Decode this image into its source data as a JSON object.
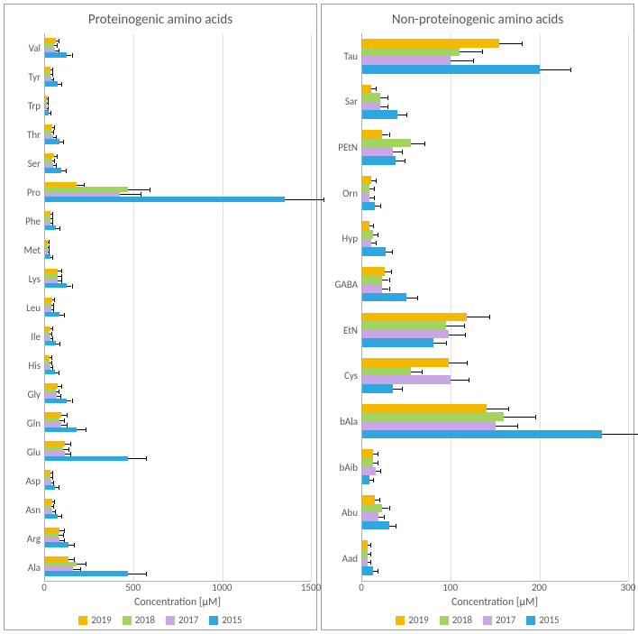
{
  "colors": {
    "2019": "#f5b800",
    "2018": "#a2d45e",
    "2017": "#c9a6e4",
    "2015": "#2ea7e0",
    "grid": "#e1e1e1",
    "axis": "#b0b0b0",
    "text": "#595959",
    "err": "#000000"
  },
  "series_order": [
    "2019",
    "2018",
    "2017",
    "2015"
  ],
  "left_panel": {
    "title": "Proteinogenic amino acids",
    "x_title": "Concentration [µM]",
    "xmax": 1500,
    "x_ticks": [
      0,
      500,
      1000,
      1500
    ],
    "bar_rel_h": 0.17,
    "categories": [
      "Val",
      "Tyr",
      "Trp",
      "Thr",
      "Ser",
      "Pro",
      "Phe",
      "Met",
      "Lys",
      "Leu",
      "Ile",
      "His",
      "Gly",
      "Gln",
      "Glu",
      "Asp",
      "Asn",
      "Arg",
      "Ala"
    ],
    "data": {
      "Val": {
        "2019": [
          60,
          15
        ],
        "2018": [
          50,
          15
        ],
        "2017": [
          55,
          20
        ],
        "2015": [
          120,
          30
        ]
      },
      "Tyr": {
        "2019": [
          30,
          10
        ],
        "2018": [
          30,
          10
        ],
        "2017": [
          35,
          10
        ],
        "2015": [
          70,
          20
        ]
      },
      "Trp": {
        "2019": [
          10,
          5
        ],
        "2018": [
          10,
          5
        ],
        "2017": [
          10,
          5
        ],
        "2015": [
          20,
          10
        ]
      },
      "Thr": {
        "2019": [
          40,
          10
        ],
        "2018": [
          35,
          10
        ],
        "2017": [
          45,
          15
        ],
        "2015": [
          80,
          20
        ]
      },
      "Ser": {
        "2019": [
          50,
          15
        ],
        "2018": [
          40,
          10
        ],
        "2017": [
          45,
          15
        ],
        "2015": [
          90,
          25
        ]
      },
      "Pro": {
        "2019": [
          180,
          40
        ],
        "2018": [
          470,
          120
        ],
        "2017": [
          420,
          120
        ],
        "2015": [
          1350,
          220
        ]
      },
      "Phe": {
        "2019": [
          30,
          10
        ],
        "2018": [
          30,
          10
        ],
        "2017": [
          30,
          10
        ],
        "2015": [
          60,
          20
        ]
      },
      "Met": {
        "2019": [
          15,
          5
        ],
        "2018": [
          15,
          5
        ],
        "2017": [
          15,
          5
        ],
        "2015": [
          30,
          10
        ]
      },
      "Lys": {
        "2019": [
          70,
          20
        ],
        "2018": [
          70,
          20
        ],
        "2017": [
          70,
          20
        ],
        "2015": [
          120,
          30
        ]
      },
      "Leu": {
        "2019": [
          40,
          10
        ],
        "2018": [
          35,
          10
        ],
        "2017": [
          35,
          10
        ],
        "2015": [
          80,
          25
        ]
      },
      "Ile": {
        "2019": [
          30,
          10
        ],
        "2018": [
          25,
          10
        ],
        "2017": [
          30,
          10
        ],
        "2015": [
          60,
          20
        ]
      },
      "His": {
        "2019": [
          25,
          10
        ],
        "2018": [
          25,
          10
        ],
        "2017": [
          30,
          10
        ],
        "2015": [
          55,
          20
        ]
      },
      "Gly": {
        "2019": [
          70,
          20
        ],
        "2018": [
          60,
          15
        ],
        "2017": [
          65,
          20
        ],
        "2015": [
          120,
          30
        ]
      },
      "Gln": {
        "2019": [
          90,
          30
        ],
        "2018": [
          80,
          25
        ],
        "2017": [
          90,
          30
        ],
        "2015": [
          180,
          50
        ]
      },
      "Glu": {
        "2019": [
          110,
          30
        ],
        "2018": [
          100,
          30
        ],
        "2017": [
          110,
          30
        ],
        "2015": [
          470,
          100
        ]
      },
      "Asp": {
        "2019": [
          30,
          10
        ],
        "2018": [
          30,
          10
        ],
        "2017": [
          35,
          10
        ],
        "2015": [
          55,
          20
        ]
      },
      "Asn": {
        "2019": [
          40,
          10
        ],
        "2018": [
          35,
          10
        ],
        "2017": [
          40,
          15
        ],
        "2015": [
          70,
          20
        ]
      },
      "Arg": {
        "2019": [
          80,
          25
        ],
        "2018": [
          75,
          25
        ],
        "2017": [
          80,
          25
        ],
        "2015": [
          130,
          35
        ]
      },
      "Ala": {
        "2019": [
          130,
          35
        ],
        "2018": [
          180,
          50
        ],
        "2017": [
          160,
          40
        ],
        "2015": [
          470,
          100
        ]
      }
    }
  },
  "right_panel": {
    "title": "Non-proteinogenic amino acids",
    "x_title": "Concentration [µM]",
    "xmax": 300,
    "x_ticks": [
      0,
      100,
      200,
      300
    ],
    "bar_rel_h": 0.19,
    "categories": [
      "Tau",
      "Sar",
      "PEtN",
      "Orn",
      "Hyp",
      "GABA",
      "EtN",
      "Cys",
      "bAla",
      "bAib",
      "Abu",
      "Aad"
    ],
    "data": {
      "Tau": {
        "2019": [
          155,
          25
        ],
        "2018": [
          110,
          25
        ],
        "2017": [
          100,
          25
        ],
        "2015": [
          200,
          35
        ]
      },
      "Sar": {
        "2019": [
          10,
          5
        ],
        "2018": [
          20,
          8
        ],
        "2017": [
          20,
          8
        ],
        "2015": [
          40,
          10
        ]
      },
      "PEtN": {
        "2019": [
          22,
          8
        ],
        "2018": [
          55,
          15
        ],
        "2017": [
          35,
          10
        ],
        "2015": [
          38,
          10
        ]
      },
      "Orn": {
        "2019": [
          10,
          5
        ],
        "2018": [
          8,
          5
        ],
        "2017": [
          8,
          5
        ],
        "2015": [
          14,
          6
        ]
      },
      "Hyp": {
        "2019": [
          8,
          4
        ],
        "2018": [
          12,
          5
        ],
        "2017": [
          10,
          5
        ],
        "2015": [
          26,
          8
        ]
      },
      "GABA": {
        "2019": [
          25,
          8
        ],
        "2018": [
          22,
          8
        ],
        "2017": [
          22,
          8
        ],
        "2015": [
          50,
          12
        ]
      },
      "EtN": {
        "2019": [
          118,
          25
        ],
        "2018": [
          95,
          20
        ],
        "2017": [
          98,
          18
        ],
        "2015": [
          80,
          15
        ]
      },
      "Cys": {
        "2019": [
          98,
          20
        ],
        "2018": [
          55,
          12
        ],
        "2017": [
          100,
          20
        ],
        "2015": [
          35,
          10
        ]
      },
      "bAla": {
        "2019": [
          140,
          25
        ],
        "2018": [
          160,
          35
        ],
        "2017": [
          150,
          25
        ],
        "2015": [
          270,
          45
        ]
      },
      "bAib": {
        "2019": [
          12,
          5
        ],
        "2018": [
          12,
          5
        ],
        "2017": [
          15,
          5
        ],
        "2015": [
          8,
          4
        ]
      },
      "Abu": {
        "2019": [
          14,
          5
        ],
        "2018": [
          22,
          8
        ],
        "2017": [
          18,
          6
        ],
        "2015": [
          30,
          8
        ]
      },
      "Aad": {
        "2019": [
          6,
          3
        ],
        "2018": [
          6,
          3
        ],
        "2017": [
          6,
          3
        ],
        "2015": [
          12,
          5
        ]
      }
    }
  },
  "legend_labels": {
    "2019": "2019",
    "2018": "2018",
    "2017": "2017",
    "2015": "2015"
  }
}
